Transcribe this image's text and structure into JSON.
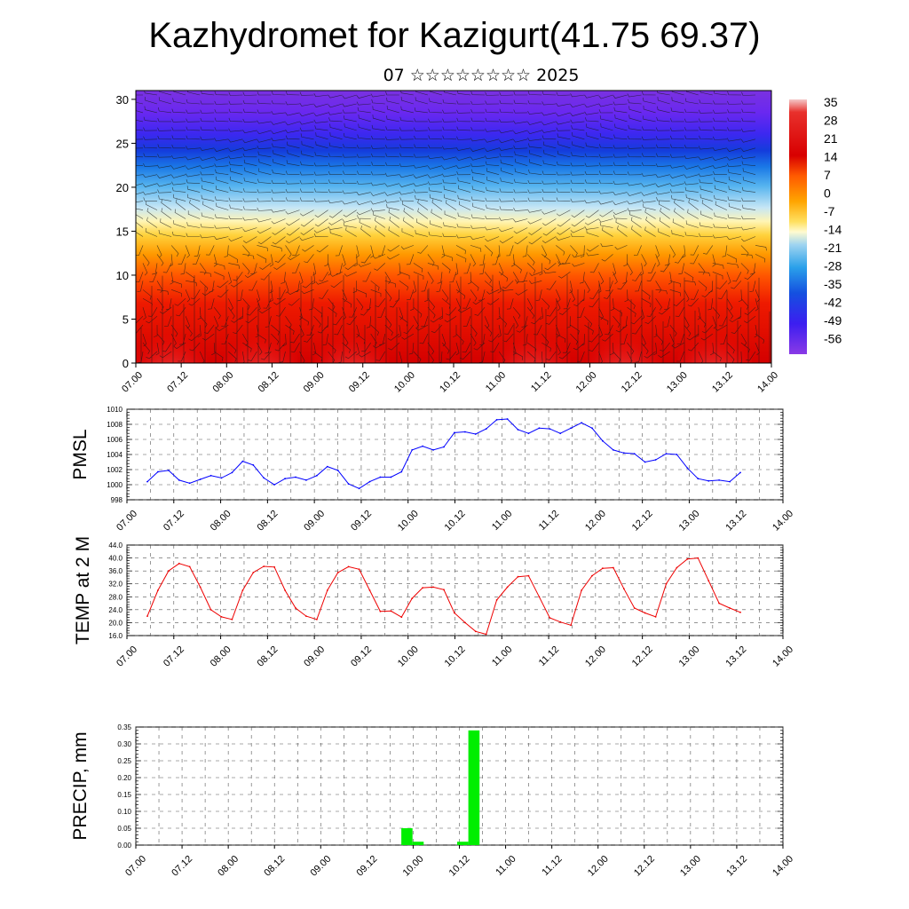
{
  "title": "Kazhydromet for Kazigurt(41.75 69.37)",
  "subtitle": "07 ☆☆☆☆☆☆☆☆ 2025",
  "x_ticks": [
    "07.00",
    "07.12",
    "08.00",
    "08.12",
    "09.00",
    "09.12",
    "10.00",
    "10.12",
    "11.00",
    "11.12",
    "12.00",
    "12.12",
    "13.00",
    "13.12",
    "14.00"
  ],
  "colors": {
    "pmsl_line": "#0000ff",
    "temp_line": "#ee0000",
    "precip_bar": "#00ee00"
  },
  "chart_data": [
    {
      "type": "heatmap",
      "title": "",
      "ylabel": "",
      "y_ticks": [
        "0",
        "5",
        "10",
        "15",
        "20",
        "25",
        "30"
      ],
      "ylim": [
        0,
        31
      ],
      "x": [
        "07.00",
        "07.12",
        "08.00",
        "08.12",
        "09.00",
        "09.12",
        "10.00",
        "10.12",
        "11.00",
        "11.12",
        "12.00",
        "12.12",
        "13.00",
        "13.12",
        "14.00"
      ],
      "colorbar": {
        "labels": [
          "35",
          "28",
          "21",
          "14",
          "7",
          "0",
          "-7",
          "-14",
          "-21",
          "-28",
          "-35",
          "-42",
          "-49",
          "-56"
        ],
        "range": [
          -60,
          38
        ]
      },
      "overlay": "wind barbs"
    },
    {
      "type": "line",
      "ylabel": "PMSL",
      "ylim": [
        998,
        1010
      ],
      "y_ticks": [
        "998",
        "1000",
        "1002",
        "1004",
        "1006",
        "1008",
        "1010"
      ],
      "x_ticks": [
        "07.00",
        "07.12",
        "08.00",
        "08.12",
        "09.00",
        "09.12",
        "10.00",
        "10.12",
        "11.00",
        "11.12",
        "12.00",
        "12.12",
        "13.00",
        "13.12",
        "14.00"
      ],
      "x_hours": [
        0,
        3,
        6,
        9,
        12,
        15,
        18,
        21,
        24,
        27,
        30,
        33,
        36,
        39,
        42,
        45,
        48,
        51,
        54,
        57,
        60,
        63,
        66,
        69,
        72,
        75,
        78,
        81,
        84,
        87,
        90,
        93,
        96,
        99,
        102,
        105,
        108,
        111,
        114,
        117,
        120,
        123,
        126,
        129,
        132,
        135,
        138,
        141,
        144,
        147,
        150,
        153,
        156,
        159,
        162,
        165,
        168
      ],
      "series": [
        {
          "values": [
            1000.4,
            1001.7,
            1001.9,
            1000.6,
            1000.2,
            1000.7,
            1001.2,
            1000.9,
            1001.6,
            1003.1,
            1002.6,
            1000.9,
            1000.0,
            1000.8,
            1001.0,
            1000.6,
            1001.2,
            1002.4,
            1001.9,
            1000.1,
            999.5,
            1000.4,
            1001.0,
            1001.0,
            1001.7,
            1004.6,
            1005.1,
            1004.6,
            1005.0,
            1006.9,
            1007.0,
            1006.7,
            1007.4,
            1008.6,
            1008.7,
            1007.3,
            1006.8,
            1007.5,
            1007.4,
            1006.8,
            1007.5,
            1008.2,
            1007.5,
            1005.8,
            1004.6,
            1004.2,
            1004.1,
            1003.0,
            1003.3,
            1004.1,
            1004.0,
            1002.2,
            1000.8,
            1000.5,
            1000.6,
            1000.4,
            1001.6
          ]
        }
      ]
    },
    {
      "type": "line",
      "ylabel": "TEMP at 2 M",
      "ylim": [
        16,
        44
      ],
      "y_ticks": [
        "16.0",
        "20.0",
        "24.0",
        "28.0",
        "32.0",
        "36.0",
        "40.0",
        "44.0"
      ],
      "x_ticks": [
        "07.00",
        "07.12",
        "08.00",
        "08.12",
        "09.00",
        "09.12",
        "10.00",
        "10.12",
        "11.00",
        "11.12",
        "12.00",
        "12.12",
        "13.00",
        "13.12",
        "14.00"
      ],
      "x_hours": [
        0,
        3,
        6,
        9,
        12,
        15,
        18,
        21,
        24,
        27,
        30,
        33,
        36,
        39,
        42,
        45,
        48,
        51,
        54,
        57,
        60,
        63,
        66,
        69,
        72,
        75,
        78,
        81,
        84,
        87,
        90,
        93,
        96,
        99,
        102,
        105,
        108,
        111,
        114,
        117,
        120,
        123,
        126,
        129,
        132,
        135,
        138,
        141,
        144,
        147,
        150,
        153,
        156,
        159,
        162,
        165,
        168
      ],
      "series": [
        {
          "values": [
            22.0,
            30.0,
            36.0,
            38.3,
            37.3,
            31.0,
            24.0,
            21.8,
            21.0,
            30.0,
            35.5,
            37.4,
            37.2,
            30.0,
            24.5,
            22.0,
            21.0,
            30.0,
            35.5,
            37.3,
            36.5,
            30.0,
            23.5,
            23.6,
            21.7,
            27.5,
            30.8,
            31.0,
            30.2,
            23.0,
            20.0,
            17.3,
            16.4,
            27.0,
            31.0,
            34.2,
            34.5,
            28.0,
            21.5,
            20.2,
            19.2,
            30.0,
            34.5,
            36.8,
            37.0,
            30.5,
            24.5,
            23.0,
            21.8,
            32.0,
            37.0,
            39.7,
            40.0,
            33.0,
            26.0,
            24.5,
            23.2
          ]
        }
      ]
    },
    {
      "type": "bar",
      "ylabel": "PRECIP, mm",
      "ylim": [
        0,
        0.35
      ],
      "y_ticks": [
        "0.00",
        "0.05",
        "0.10",
        "0.15",
        "0.20",
        "0.25",
        "0.30",
        "0.35"
      ],
      "x_ticks": [
        "07.00",
        "07.12",
        "08.00",
        "08.12",
        "09.00",
        "09.12",
        "10.00",
        "10.12",
        "11.00",
        "11.12",
        "12.00",
        "12.12",
        "13.00",
        "13.12",
        "14.00"
      ],
      "bars": [
        {
          "start_hour": 69,
          "end_hour": 72,
          "value": 0.05
        },
        {
          "start_hour": 72,
          "end_hour": 75,
          "value": 0.01
        },
        {
          "start_hour": 84,
          "end_hour": 87,
          "value": 0.01
        },
        {
          "start_hour": 87,
          "end_hour": 90,
          "value": 0.34
        }
      ]
    }
  ]
}
